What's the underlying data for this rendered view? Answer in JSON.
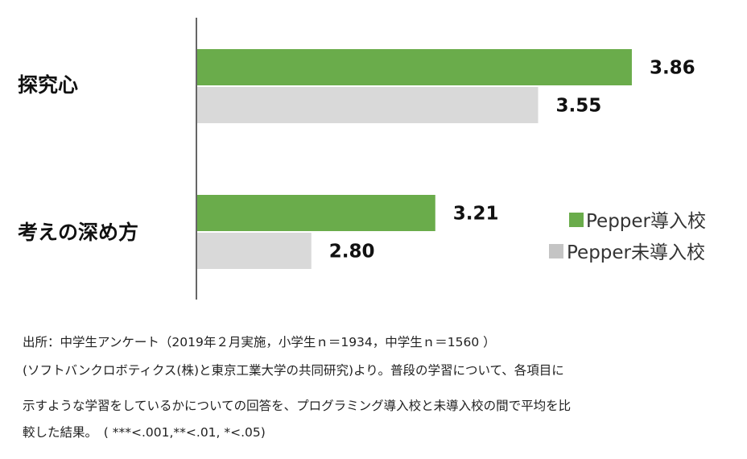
{
  "chart_data": {
    "type": "bar",
    "orientation": "horizontal",
    "categories": [
      "探究心",
      "考えの深め方"
    ],
    "series": [
      {
        "name": "Pepper導入校",
        "color": "#6aac4b",
        "values": [
          3.86,
          3.21
        ],
        "labels": [
          "3.86",
          "3.21"
        ]
      },
      {
        "name": "Pepper未導入校",
        "color": "#d9d9d9",
        "values": [
          3.55,
          2.8
        ],
        "labels": [
          "3.55",
          "2.80"
        ]
      }
    ],
    "xlim": [
      2.42,
      3.94
    ],
    "grid": false,
    "legend_position": "right"
  },
  "legend_colors": {
    "導入": "#6aac4b",
    "未導入": "#c4c4c4"
  },
  "notes": {
    "line1": "出所：中学生アンケート（2019年２月実施，小学生ｎ＝1934，中学生ｎ＝1560 ）",
    "line2": "(ソフトバンクロボティクス(株)と東京工業大学の共同研究)より。普段の学習について、各項目に",
    "line3": "示すような学習をしているかについての回答を、プログラミング導入校と未導入校の間で平均を比",
    "line4": "較した結果。　( ***<.001,**<.01, *<.05)"
  }
}
